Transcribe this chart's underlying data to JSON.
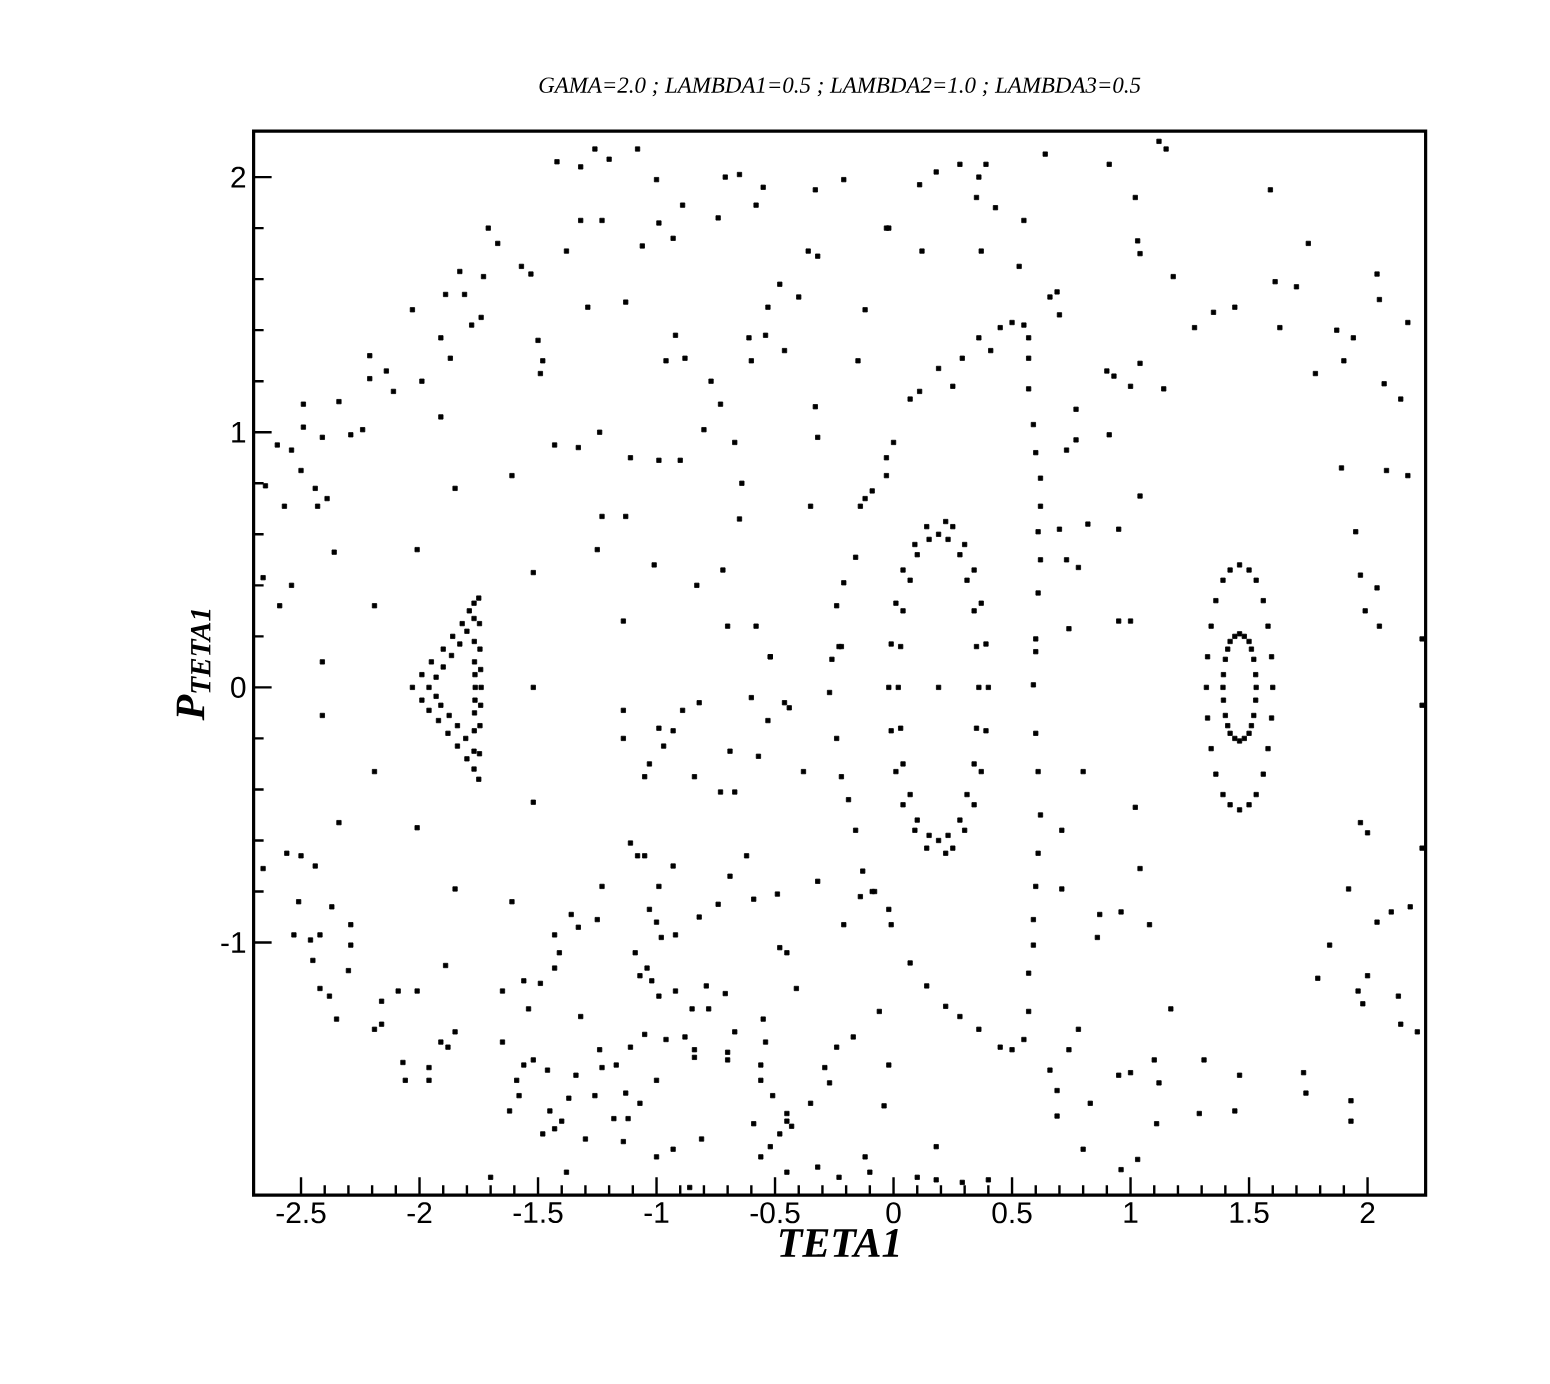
{
  "chart_data": {
    "type": "scatter",
    "title": "GAMA=2.0 ; LAMBDA1=0.5 ; LAMBDA2=1.0 ; LAMBDA3=0.5",
    "xlabel": "TETA1",
    "ylabel": "P$_{TETA1}$",
    "xlim": [
      -2.7,
      2.245
    ],
    "ylim": [
      -1.99,
      2.18
    ],
    "xticks": [
      -2.5,
      -2,
      -1.5,
      -1,
      -0.5,
      0,
      0.5,
      1,
      1.5,
      2
    ],
    "yticks": [
      -1,
      0,
      1,
      2
    ],
    "marker": "square",
    "series": [
      {
        "color": "#000000",
        "x": [
          -1.42,
          -1.26,
          -1.2,
          -1.08,
          -1.0,
          -0.71,
          -0.65,
          -0.55,
          -0.33,
          -0.21,
          -0.03,
          -1.32,
          -0.89,
          -0.74,
          -0.58,
          -1.32,
          -1.23,
          -0.99,
          -0.93,
          -1.06,
          -1.38,
          -1.71,
          -1.67,
          -1.57,
          -1.53,
          -1.83,
          -1.73,
          -1.89,
          -1.81,
          -2.03,
          -1.91,
          -1.87,
          -1.78,
          -1.74,
          -1.5,
          -1.48,
          -1.49,
          -1.29,
          -1.13,
          -0.92,
          -0.96,
          -0.88,
          -0.77,
          -0.73,
          -0.61,
          -0.54,
          -0.53,
          -0.48,
          -0.4,
          -0.36,
          -0.32,
          -0.12,
          -0.15,
          -0.6,
          -0.46,
          -0.33,
          -0.32,
          -2.21,
          -2.21,
          -2.14,
          -2.11,
          -1.99,
          -1.91,
          -2.34,
          -2.49,
          -2.49,
          -2.41,
          -2.29,
          -2.24,
          -2.6,
          -2.54,
          -2.5,
          -2.44,
          -2.39,
          -2.43,
          -2.57,
          -2.65,
          -2.36,
          -2.01,
          -1.85,
          -1.61,
          -1.43,
          -1.33,
          -1.24,
          -1.11,
          -0.99,
          -0.9,
          -0.8,
          -0.67,
          -0.64,
          -0.65,
          -0.35,
          -1.23,
          -1.13,
          -1.25,
          -1.52,
          -1.01,
          -0.83,
          -0.72,
          -2.19,
          -2.59,
          -2.54,
          -2.66,
          -1.14,
          -0.7,
          -0.58,
          -0.52,
          0.11,
          0.18,
          0.28,
          0.39,
          0.36,
          0.35,
          0.43,
          0.55,
          0.64,
          0.91,
          1.12,
          1.15,
          1.02,
          1.59,
          -0.02,
          0.12,
          0.37,
          0.53,
          1.03,
          1.04,
          1.18,
          1.75,
          1.61,
          1.7,
          2.04,
          2.05,
          2.17,
          1.87,
          1.94,
          1.9,
          2.07,
          2.14,
          1.78,
          1.63,
          1.44,
          1.35,
          1.27,
          0.69,
          0.7,
          0.66,
          0.9,
          0.93,
          1.0,
          1.04,
          1.14,
          0.77,
          0.77,
          0.73,
          0.91,
          1.04,
          1.89,
          2.08,
          2.17,
          1.95,
          1.97,
          2.04,
          1.99,
          2.05,
          0.7,
          0.82,
          0.95,
          0.73,
          0.78,
          0.95,
          1.0,
          0.74,
          2.23,
          -2.41,
          -2.41,
          -2.19,
          -2.34,
          -2.01,
          -2.56,
          -2.5,
          -2.44,
          -2.66,
          -2.51,
          -2.37,
          -2.29,
          -2.29,
          -2.53,
          -2.46,
          -2.42,
          -2.45,
          -2.3,
          -2.42,
          -2.38,
          -2.35,
          -2.16,
          -2.09,
          -2.01,
          -2.16,
          -2.19,
          -2.07,
          -2.06,
          -1.96,
          -1.96,
          -1.91,
          -1.88,
          -1.85,
          -1.89,
          -1.85,
          -1.61,
          -1.52,
          -1.52,
          -1.7,
          -1.65,
          -1.65,
          -1.56,
          -1.49,
          -1.54,
          -1.43,
          -1.41,
          -1.43,
          -1.36,
          -1.33,
          -1.25,
          -1.23,
          -1.32,
          -1.62,
          -1.58,
          -1.59,
          -1.56,
          -1.52,
          -1.46,
          -1.45,
          -1.48,
          -1.43,
          -1.4,
          -1.38,
          -1.37,
          -1.34,
          -1.3,
          -1.26,
          -1.23,
          -1.24,
          -1.17,
          -1.18,
          -1.14,
          -1.13,
          -1.12,
          -1.07,
          -1.11,
          -1.05,
          -1.09,
          -1.07,
          -1.04,
          -1.02,
          -0.99,
          -1.03,
          -1.0,
          -0.98,
          -0.99,
          -0.93,
          -0.92,
          -0.92,
          -0.96,
          -0.88,
          -0.84,
          -0.84,
          -1.0,
          -1.0,
          -0.93,
          -0.86,
          -0.81,
          -0.85,
          -0.79,
          -0.78,
          -0.71,
          -0.7,
          -0.7,
          -0.67,
          -0.55,
          -0.54,
          -0.56,
          -0.56,
          -0.51,
          -0.59,
          -0.56,
          -0.52,
          -0.48,
          -0.45,
          -0.45,
          -0.43,
          -0.45,
          -0.35,
          -0.29,
          -0.27,
          -0.24,
          -0.17,
          -0.06,
          -0.02,
          -0.04,
          -0.32,
          -0.23,
          -0.12,
          -0.1,
          -0.41,
          -0.48,
          -0.45,
          -0.38,
          -0.32,
          -0.21,
          -0.14,
          -0.08,
          -0.49,
          -0.59,
          -0.62,
          -0.69,
          -0.74,
          -0.82,
          -0.84,
          -0.73,
          -0.67,
          -0.69,
          -0.57,
          -0.53,
          -0.6,
          -0.46,
          -0.44,
          -0.52,
          -0.89,
          -0.82,
          -1.14,
          -1.14,
          -0.99,
          -0.93,
          -0.97,
          -1.03,
          -1.05,
          -1.11,
          -1.08,
          -1.05,
          0.8,
          1.02,
          1.04,
          0.71,
          0.71,
          0.87,
          0.96,
          1.08,
          0.86,
          1.17,
          0.78,
          0.74,
          0.66,
          0.69,
          0.69,
          0.83,
          0.95,
          1.0,
          1.1,
          1.12,
          1.11,
          1.31,
          1.29,
          1.44,
          1.46,
          1.73,
          1.74,
          1.93,
          1.93,
          0.8,
          1.03,
          0.96,
          0.18,
          0.1,
          0.18,
          0.29,
          0.4,
          1.97,
          2.0,
          1.92,
          1.84,
          1.79,
          1.96,
          1.98,
          2.0,
          2.04,
          2.1,
          2.18,
          2.13,
          2.14,
          2.21,
          2.23,
          2.23
        ],
        "values": [
          2.06,
          2.11,
          2.07,
          2.11,
          1.99,
          2.0,
          2.01,
          1.96,
          1.95,
          1.99,
          1.8,
          2.04,
          1.89,
          1.84,
          1.89,
          1.83,
          1.83,
          1.82,
          1.76,
          1.73,
          1.71,
          1.8,
          1.74,
          1.65,
          1.62,
          1.63,
          1.61,
          1.54,
          1.54,
          1.48,
          1.37,
          1.29,
          1.42,
          1.45,
          1.36,
          1.28,
          1.23,
          1.49,
          1.51,
          1.38,
          1.28,
          1.29,
          1.2,
          1.11,
          1.37,
          1.38,
          1.49,
          1.58,
          1.53,
          1.71,
          1.69,
          1.48,
          1.28,
          1.28,
          1.32,
          1.1,
          0.98,
          1.3,
          1.21,
          1.24,
          1.16,
          1.2,
          1.06,
          1.12,
          1.11,
          1.02,
          0.98,
          0.99,
          1.01,
          0.95,
          0.93,
          0.85,
          0.78,
          0.74,
          0.71,
          0.71,
          0.79,
          0.53,
          0.54,
          0.78,
          0.83,
          0.95,
          0.94,
          1.0,
          0.9,
          0.89,
          0.89,
          1.01,
          0.96,
          0.8,
          0.66,
          0.71,
          0.67,
          0.67,
          0.54,
          0.45,
          0.48,
          0.4,
          0.46,
          0.32,
          0.32,
          0.4,
          0.43,
          0.26,
          0.24,
          0.24,
          0.12,
          1.97,
          2.02,
          2.05,
          2.05,
          2.0,
          1.92,
          1.88,
          1.83,
          2.09,
          2.05,
          2.14,
          2.11,
          1.92,
          1.95,
          1.8,
          1.71,
          1.71,
          1.65,
          1.75,
          1.7,
          1.61,
          1.74,
          1.59,
          1.57,
          1.62,
          1.52,
          1.43,
          1.4,
          1.37,
          1.28,
          1.19,
          1.13,
          1.23,
          1.41,
          1.49,
          1.47,
          1.41,
          1.55,
          1.46,
          1.53,
          1.24,
          1.22,
          1.18,
          1.27,
          1.17,
          1.09,
          0.97,
          0.93,
          0.99,
          0.75,
          0.86,
          0.85,
          0.83,
          0.61,
          0.44,
          0.39,
          0.3,
          0.24,
          0.62,
          0.64,
          0.62,
          0.5,
          0.47,
          0.26,
          0.26,
          0.23,
          0.19,
          0.1,
          -0.11,
          -0.33,
          -0.53,
          -0.55,
          -0.65,
          -0.66,
          -0.7,
          -0.71,
          -0.84,
          -0.86,
          -0.93,
          -1.01,
          -0.97,
          -0.99,
          -0.97,
          -1.07,
          -1.11,
          -1.18,
          -1.21,
          -1.3,
          -1.23,
          -1.19,
          -1.19,
          -1.32,
          -1.34,
          -1.47,
          -1.54,
          -1.49,
          -1.54,
          -1.39,
          -1.41,
          -1.35,
          -1.09,
          -0.79,
          -0.84,
          0.0,
          -0.45,
          -1.92,
          -1.39,
          -1.19,
          -1.15,
          -1.16,
          -1.26,
          -1.1,
          -1.04,
          -0.97,
          -0.89,
          -0.94,
          -0.91,
          -0.78,
          -1.29,
          -1.66,
          -1.6,
          -1.54,
          -1.48,
          -1.46,
          -1.5,
          -1.66,
          -1.75,
          -1.73,
          -1.7,
          -1.9,
          -1.61,
          -1.52,
          -1.77,
          -1.6,
          -1.49,
          -1.42,
          -1.48,
          -1.69,
          -1.78,
          -1.59,
          -1.69,
          -1.63,
          -1.41,
          -1.36,
          -1.04,
          -1.13,
          -1.1,
          -1.15,
          -1.21,
          -0.87,
          -0.92,
          -0.98,
          -0.78,
          -0.7,
          -0.97,
          -1.19,
          -1.38,
          -1.37,
          -1.42,
          -1.45,
          -1.54,
          -1.84,
          -1.81,
          -1.96,
          -1.77,
          -1.26,
          -1.17,
          -1.26,
          -1.2,
          -1.43,
          -1.46,
          -1.35,
          -1.3,
          -1.39,
          -1.48,
          -1.54,
          -1.6,
          -1.71,
          -1.84,
          -1.8,
          -1.75,
          -1.67,
          -1.7,
          -1.72,
          -1.9,
          -1.63,
          -1.49,
          -1.55,
          -1.41,
          -1.37,
          -1.27,
          -1.48,
          -1.64,
          -1.88,
          -1.92,
          -1.84,
          -1.9,
          -1.18,
          -1.02,
          -1.04,
          -0.33,
          -0.76,
          -0.93,
          -0.82,
          -0.8,
          -0.81,
          -0.83,
          -0.66,
          -0.74,
          -0.85,
          -0.9,
          -0.35,
          -0.41,
          -0.41,
          -0.25,
          -0.27,
          -0.13,
          -0.04,
          -0.06,
          -0.08,
          0.12,
          -0.09,
          -0.06,
          -0.09,
          -0.2,
          -0.16,
          -0.17,
          -0.23,
          -0.3,
          -0.35,
          -0.61,
          -0.66,
          -0.66,
          -0.33,
          -0.47,
          -0.71,
          -0.56,
          -0.79,
          -0.89,
          -0.88,
          -0.93,
          -0.98,
          -1.26,
          -1.34,
          -1.42,
          -1.5,
          -1.58,
          -1.68,
          -1.63,
          -1.52,
          -1.51,
          -1.46,
          -1.55,
          -1.71,
          -1.46,
          -1.67,
          -1.66,
          -1.52,
          -1.51,
          -1.59,
          -1.62,
          -1.7,
          -1.81,
          -1.85,
          -1.89,
          -1.8,
          -1.92,
          -1.93,
          -1.94,
          -1.93,
          -0.53,
          -0.57,
          -0.79,
          -1.01,
          -1.14,
          -1.19,
          -1.24,
          -1.13,
          -0.92,
          -0.88,
          -0.86,
          -1.21,
          -1.32,
          -1.35,
          -0.07,
          -0.63
        ]
      },
      {
        "color": "#000000",
        "x": [
          -0.21,
          -0.16,
          -0.14,
          -0.12,
          -0.09,
          -0.03,
          -0.03,
          0.0,
          0.07,
          0.11,
          0.19,
          0.25,
          0.29,
          0.36,
          0.41,
          0.45,
          0.5,
          0.55,
          0.57,
          0.57,
          0.57,
          0.59,
          0.6,
          0.62,
          0.62,
          0.61,
          0.62,
          0.61,
          0.6,
          0.6,
          0.59,
          0.6,
          0.61,
          0.62,
          0.61,
          0.6,
          0.59,
          0.59,
          0.57,
          0.57,
          0.55,
          0.5,
          0.45,
          0.36,
          0.28,
          0.22,
          0.14,
          0.07,
          -0.01,
          -0.02,
          -0.09,
          -0.13,
          -0.16,
          -0.19,
          -0.22,
          -0.24,
          -0.27,
          -0.26,
          -0.23,
          -0.24,
          -0.22
        ],
        "values": [
          0.41,
          0.51,
          0.71,
          0.74,
          0.77,
          0.83,
          0.9,
          0.96,
          1.13,
          1.16,
          1.25,
          1.18,
          1.29,
          1.37,
          1.32,
          1.41,
          1.43,
          1.42,
          1.37,
          1.29,
          1.17,
          1.03,
          0.92,
          0.82,
          0.71,
          0.61,
          0.5,
          0.37,
          0.19,
          0.14,
          0.01,
          -0.18,
          -0.33,
          -0.5,
          -0.65,
          -0.78,
          -0.91,
          -1.01,
          -1.12,
          -1.27,
          -1.38,
          -1.42,
          -1.41,
          -1.34,
          -1.29,
          -1.25,
          -1.17,
          -1.08,
          -0.93,
          -0.87,
          -0.8,
          -0.72,
          -0.56,
          -0.44,
          -0.35,
          -0.2,
          -0.02,
          0.11,
          0.16,
          0.32,
          0.16
        ]
      },
      {
        "color": "#000000",
        "x": [
          0.19
        ],
        "values": [
          0.0
        ]
      },
      {
        "color": "#000000",
        "x": [
          0.4,
          0.39,
          0.37,
          0.34,
          0.3,
          0.25,
          0.22,
          0.14,
          0.09,
          0.04,
          0.01,
          -0.01,
          -0.02,
          -0.01,
          0.01,
          0.04,
          0.09,
          0.14,
          0.22,
          0.25,
          0.3,
          0.34,
          0.37,
          0.39
        ],
        "values": [
          0.0,
          0.17,
          0.33,
          0.46,
          0.56,
          0.63,
          0.65,
          0.63,
          0.56,
          0.46,
          0.33,
          0.17,
          0.0,
          -0.17,
          -0.33,
          -0.46,
          -0.56,
          -0.63,
          -0.65,
          -0.63,
          -0.56,
          -0.46,
          -0.33,
          -0.17
        ]
      },
      {
        "color": "#000000",
        "x": [
          0.36,
          0.35,
          0.34,
          0.31,
          0.28,
          0.23,
          0.19,
          0.15,
          0.1,
          0.07,
          0.04,
          0.03,
          0.02,
          0.03,
          0.04,
          0.07,
          0.1,
          0.15,
          0.19,
          0.23,
          0.28,
          0.31,
          0.34,
          0.35
        ],
        "values": [
          0.0,
          0.16,
          0.3,
          0.42,
          0.52,
          0.58,
          0.6,
          0.58,
          0.52,
          0.42,
          0.3,
          0.16,
          0.0,
          -0.16,
          -0.3,
          -0.42,
          -0.52,
          -0.58,
          -0.6,
          -0.58,
          -0.52,
          -0.42,
          -0.3,
          -0.16
        ]
      },
      {
        "color": "#000000",
        "x": [
          1.6,
          1.595,
          1.58,
          1.56,
          1.53,
          1.5,
          1.46,
          1.42,
          1.39,
          1.36,
          1.34,
          1.325,
          1.32,
          1.325,
          1.34,
          1.36,
          1.39,
          1.42,
          1.46,
          1.5,
          1.53,
          1.56,
          1.58,
          1.595
        ],
        "values": [
          0.0,
          0.12,
          0.24,
          0.34,
          0.42,
          0.46,
          0.48,
          0.46,
          0.42,
          0.34,
          0.24,
          0.12,
          0.0,
          -0.12,
          -0.24,
          -0.34,
          -0.42,
          -0.46,
          -0.48,
          -0.46,
          -0.42,
          -0.34,
          -0.24,
          -0.12
        ]
      },
      {
        "color": "#000000",
        "x": [
          1.53,
          1.528,
          1.52,
          1.51,
          1.5,
          1.48,
          1.46,
          1.44,
          1.42,
          1.41,
          1.4,
          1.392,
          1.39,
          1.392,
          1.4,
          1.41,
          1.42,
          1.44,
          1.46,
          1.48,
          1.5,
          1.51,
          1.52,
          1.528
        ],
        "values": [
          0.0,
          0.05,
          0.11,
          0.15,
          0.18,
          0.2,
          0.21,
          0.2,
          0.18,
          0.15,
          0.11,
          0.05,
          0.0,
          -0.05,
          -0.11,
          -0.15,
          -0.18,
          -0.2,
          -0.21,
          -0.2,
          -0.18,
          -0.15,
          -0.11,
          -0.05
        ]
      },
      {
        "color": "#000000",
        "x": [
          -2.03,
          -1.99,
          -1.95,
          -1.9,
          -1.86,
          -1.82,
          -1.79,
          -1.77,
          -1.75,
          -1.747,
          -1.745,
          -1.742,
          -1.74,
          -1.742,
          -1.745,
          -1.747,
          -1.75,
          -1.77,
          -1.8,
          -1.84,
          -1.88,
          -1.92,
          -1.96,
          -1.99
        ],
        "values": [
          0.0,
          0.05,
          0.1,
          0.15,
          0.2,
          0.25,
          0.3,
          0.33,
          0.35,
          0.25,
          0.15,
          0.07,
          0.0,
          -0.07,
          -0.15,
          -0.26,
          -0.36,
          -0.32,
          -0.28,
          -0.23,
          -0.18,
          -0.13,
          -0.09,
          -0.05
        ]
      },
      {
        "color": "#000000",
        "x": [
          -1.96,
          -1.93,
          -1.9,
          -1.865,
          -1.83,
          -1.8,
          -1.77,
          -1.769,
          -1.768,
          -1.766,
          -1.765,
          -1.766,
          -1.768,
          -1.769,
          -1.77,
          -1.805,
          -1.84,
          -1.875,
          -1.91,
          -1.93
        ],
        "values": [
          0.0,
          0.04,
          0.08,
          0.125,
          0.17,
          0.22,
          0.27,
          0.18,
          0.1,
          0.05,
          0.0,
          -0.05,
          -0.1,
          -0.17,
          -0.25,
          -0.2,
          -0.15,
          -0.11,
          -0.07,
          -0.035
        ]
      }
    ]
  }
}
